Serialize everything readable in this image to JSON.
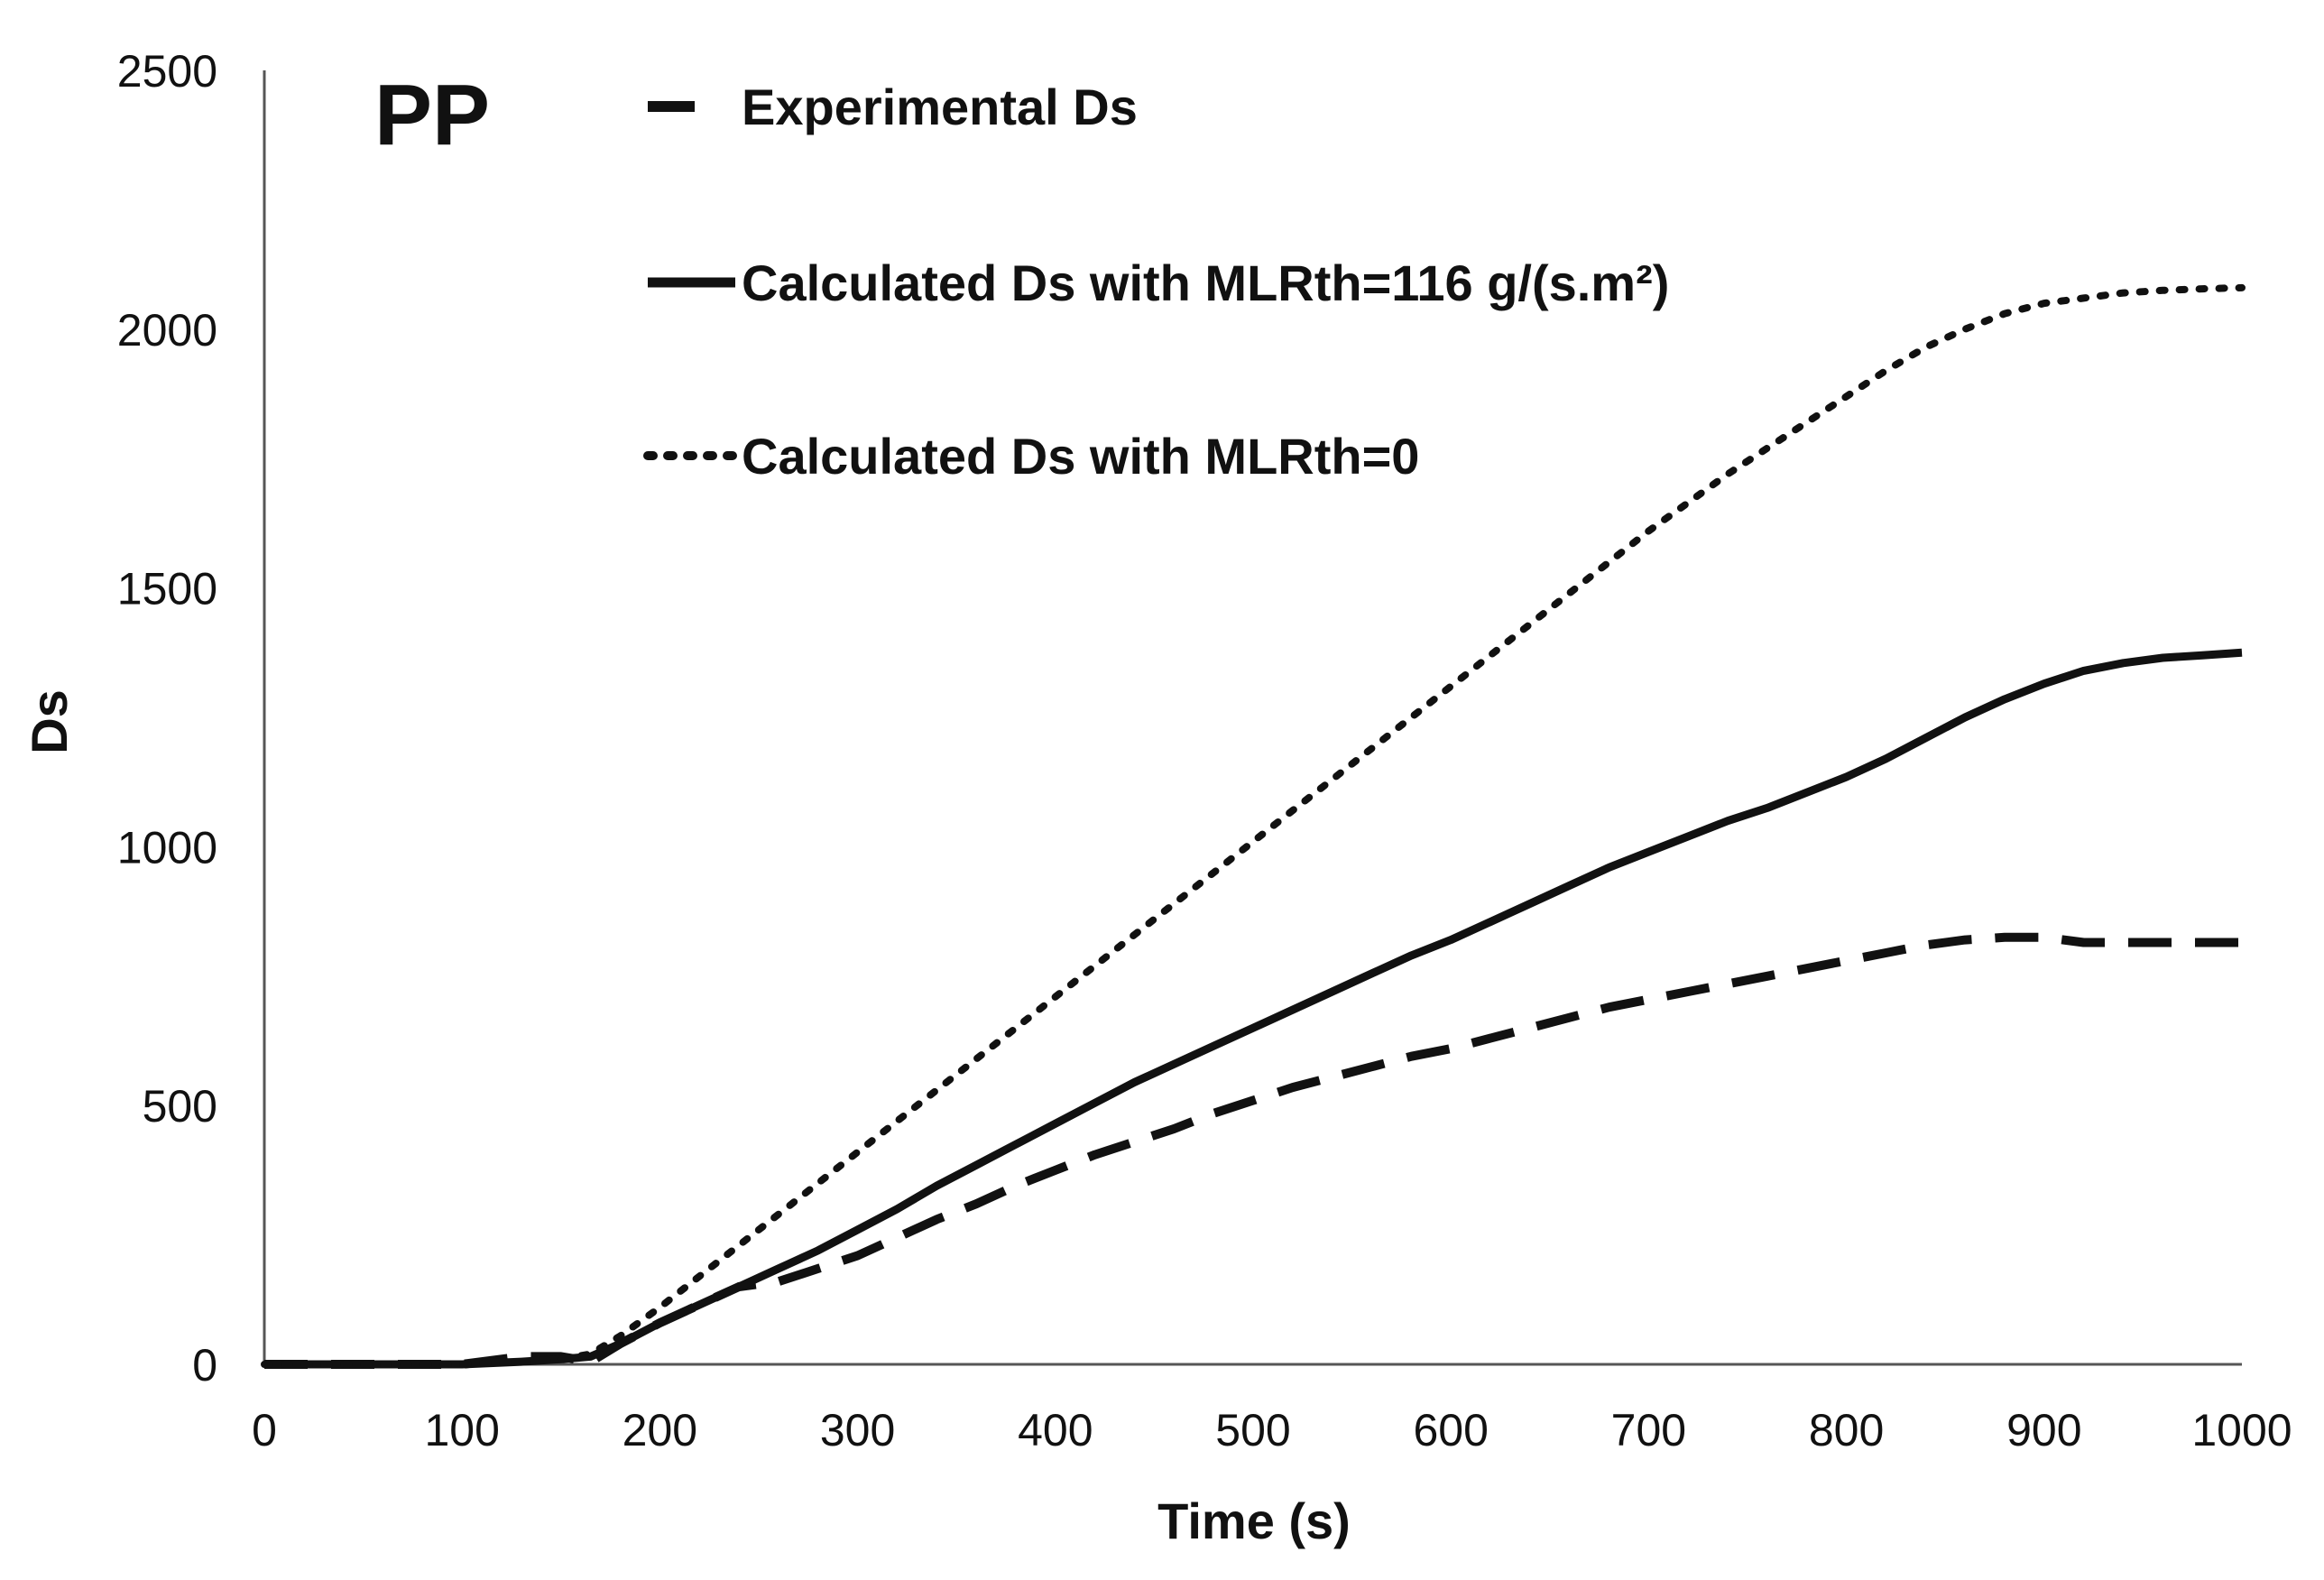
{
  "chart_data": {
    "type": "line",
    "title": "",
    "panel_label": "PP",
    "xlabel": "Time (s)",
    "ylabel": "Ds",
    "xlim": [
      0,
      1000
    ],
    "ylim": [
      0,
      2500
    ],
    "xticks": [
      0,
      100,
      200,
      300,
      400,
      500,
      600,
      700,
      800,
      900,
      1000
    ],
    "yticks": [
      0,
      500,
      1000,
      1500,
      2000,
      2500
    ],
    "xtick_labels": [
      "0",
      "100",
      "200",
      "300",
      "400",
      "500",
      "600",
      "700",
      "800",
      "900",
      "1000"
    ],
    "ytick_labels": [
      "0",
      "500",
      "1000",
      "1500",
      "2000",
      "2500"
    ],
    "grid": false,
    "legend_position": "top-center",
    "series": [
      {
        "name": "Experimental Ds",
        "style": "dashed",
        "color": "#111111",
        "x": [
          0,
          100,
          130,
          150,
          165,
          180,
          200,
          220,
          240,
          260,
          280,
          300,
          320,
          340,
          360,
          380,
          400,
          420,
          440,
          460,
          480,
          500,
          520,
          540,
          560,
          580,
          600,
          620,
          640,
          660,
          680,
          700,
          720,
          740,
          760,
          780,
          800,
          820,
          840,
          860,
          880,
          900,
          920,
          940,
          960,
          980,
          1000
        ],
        "y": [
          0,
          0,
          15,
          15,
          5,
          40,
          80,
          115,
          150,
          160,
          185,
          210,
          245,
          280,
          310,
          345,
          375,
          405,
          430,
          455,
          485,
          510,
          535,
          555,
          575,
          595,
          610,
          630,
          650,
          670,
          690,
          705,
          720,
          735,
          750,
          765,
          780,
          795,
          810,
          820,
          825,
          825,
          815,
          815,
          815,
          815,
          815
        ]
      },
      {
        "name": "Calculated Ds with MLRth=116 g/(s.m²)",
        "style": "solid",
        "color": "#111111",
        "x": [
          0,
          100,
          130,
          150,
          165,
          180,
          200,
          220,
          240,
          260,
          280,
          300,
          320,
          340,
          360,
          380,
          400,
          420,
          440,
          460,
          480,
          500,
          520,
          540,
          560,
          580,
          600,
          620,
          640,
          660,
          680,
          700,
          720,
          740,
          760,
          780,
          800,
          820,
          840,
          860,
          880,
          900,
          920,
          940,
          960,
          980,
          1000
        ],
        "y": [
          0,
          0,
          5,
          10,
          15,
          40,
          80,
          115,
          150,
          185,
          220,
          260,
          300,
          345,
          385,
          425,
          465,
          505,
          545,
          580,
          615,
          650,
          685,
          720,
          755,
          790,
          820,
          855,
          890,
          925,
          960,
          990,
          1020,
          1050,
          1075,
          1105,
          1135,
          1170,
          1210,
          1250,
          1285,
          1315,
          1340,
          1355,
          1365,
          1370,
          1375
        ]
      },
      {
        "name": "Calculated Ds with MLRth=0",
        "style": "dotted",
        "color": "#111111",
        "x": [
          0,
          100,
          130,
          150,
          165,
          180,
          200,
          220,
          240,
          260,
          280,
          300,
          320,
          340,
          360,
          380,
          400,
          420,
          440,
          460,
          480,
          500,
          520,
          540,
          560,
          580,
          600,
          620,
          640,
          660,
          680,
          700,
          720,
          740,
          760,
          780,
          800,
          820,
          840,
          860,
          880,
          900,
          920,
          940,
          960,
          980,
          1000
        ],
        "y": [
          0,
          0,
          5,
          10,
          20,
          55,
          110,
          170,
          230,
          290,
          350,
          410,
          470,
          530,
          590,
          650,
          710,
          770,
          830,
          890,
          950,
          1010,
          1070,
          1130,
          1190,
          1250,
          1310,
          1370,
          1430,
          1490,
          1550,
          1610,
          1665,
          1720,
          1770,
          1820,
          1870,
          1920,
          1965,
          2000,
          2030,
          2050,
          2060,
          2070,
          2075,
          2078,
          2080
        ]
      }
    ]
  }
}
